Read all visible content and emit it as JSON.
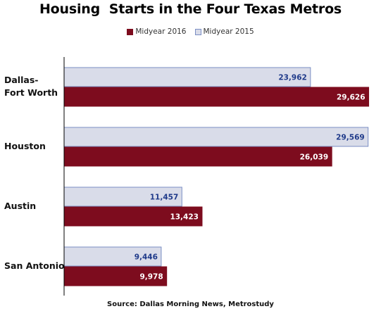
{
  "chart_data": {
    "type": "bar",
    "orientation": "horizontal",
    "title": "Housing  Starts in the Four Texas Metros",
    "source": "Source: Dallas Morning News, Metrostudy",
    "categories": [
      [
        "Dallas-",
        "Fort Worth"
      ],
      [
        "Houston"
      ],
      [
        "Austin"
      ],
      [
        "San Antonio"
      ]
    ],
    "series": [
      {
        "name": "Midyear 2015",
        "values": [
          23962,
          29569,
          11457,
          9446
        ],
        "labels": [
          "23,962",
          "29,569",
          "11,457",
          "9,446"
        ],
        "fill": "#d9dce9",
        "stroke": "#7a8ec4",
        "label_color": "#1f3a8a"
      },
      {
        "name": "Midyear 2016",
        "values": [
          29626,
          26039,
          13423,
          9978
        ],
        "labels": [
          "29,626",
          "26,039",
          "13,423",
          "9,978"
        ],
        "fill": "#7d0c1e",
        "stroke": "#7d0c1e",
        "label_color": "#ffffff"
      }
    ],
    "legend_order": [
      1,
      0
    ],
    "legend_position": "top-center",
    "xlim": [
      0,
      30000
    ],
    "grid": false,
    "axis_labels_visible": false
  }
}
